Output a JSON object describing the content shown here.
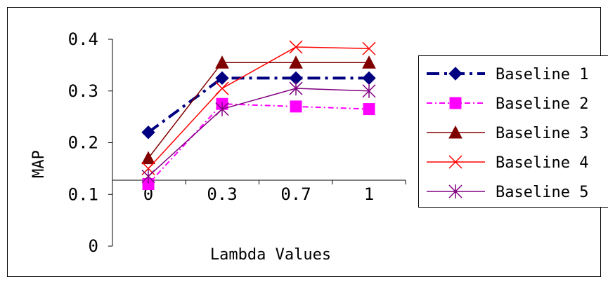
{
  "chart_data": {
    "type": "line",
    "title": "",
    "xlabel": "Lambda Values",
    "ylabel": "MAP",
    "categories": [
      "0",
      "0.3",
      "0.7",
      "1"
    ],
    "y_ticks": [
      "0",
      "0.1",
      "0.2",
      "0.3",
      "0.4"
    ],
    "ylim": [
      0,
      0.4
    ],
    "grid": false,
    "legend_position": "right",
    "series": [
      {
        "name": "Baseline 1",
        "values": [
          0.22,
          0.325,
          0.325,
          0.325
        ],
        "color": "#000080",
        "marker": "diamond",
        "dash": "long-dash-dot"
      },
      {
        "name": "Baseline 2",
        "values": [
          0.12,
          0.275,
          0.27,
          0.265
        ],
        "color": "#ff00ff",
        "marker": "square",
        "dash": "dash-dot"
      },
      {
        "name": "Baseline 3",
        "values": [
          0.17,
          0.355,
          0.355,
          0.355
        ],
        "color": "#800000",
        "marker": "triangle",
        "dash": "solid"
      },
      {
        "name": "Baseline 4",
        "values": [
          0.15,
          0.305,
          0.385,
          0.382
        ],
        "color": "#ff0000",
        "marker": "x",
        "dash": "solid"
      },
      {
        "name": "Baseline 5",
        "values": [
          0.135,
          0.265,
          0.305,
          0.3
        ],
        "color": "#800080",
        "marker": "asterisk",
        "dash": "solid"
      }
    ]
  }
}
